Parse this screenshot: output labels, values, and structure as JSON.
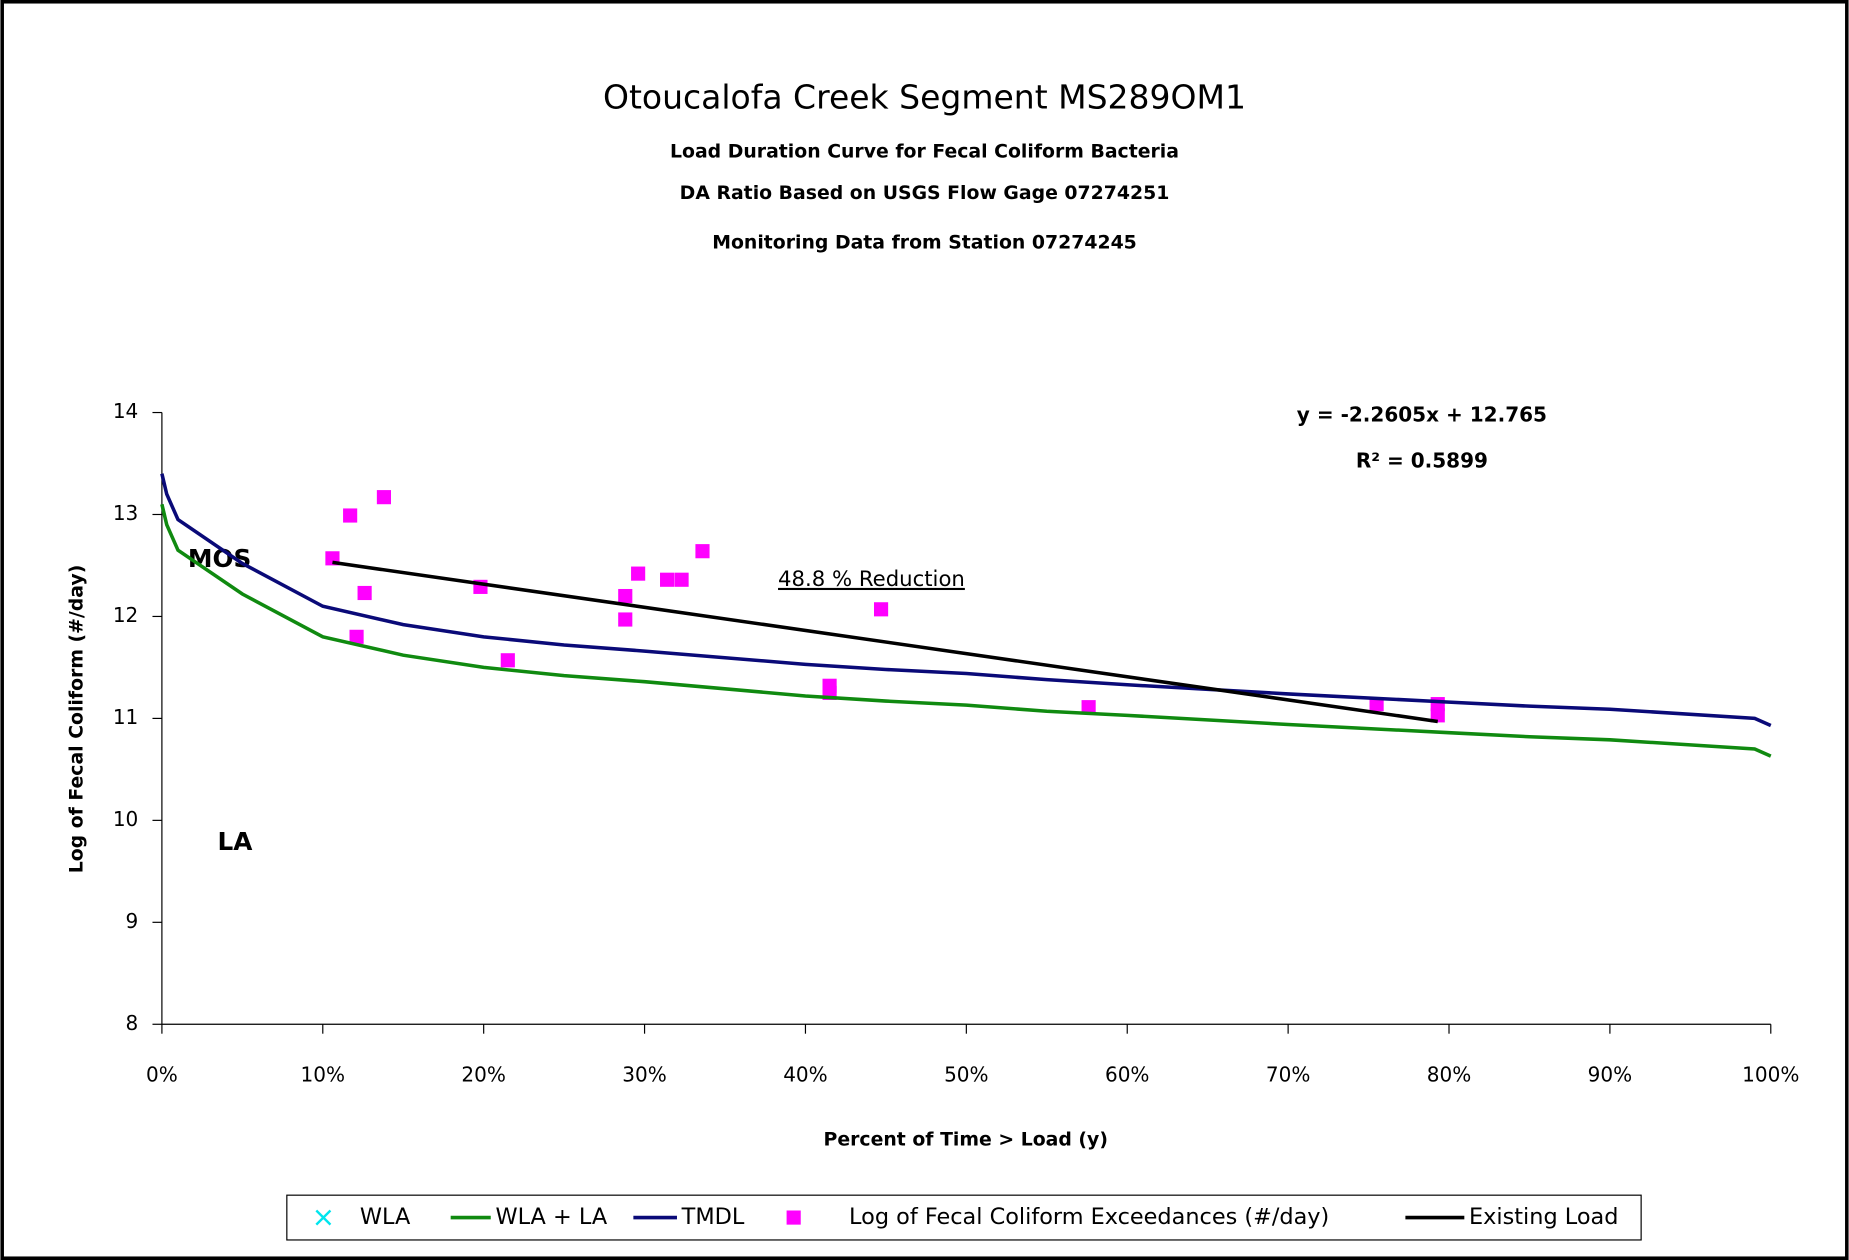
{
  "chart_data": {
    "type": "line",
    "title": "Otoucalofa Creek Segment MS289OM1",
    "subtitles": [
      "Load Duration Curve for Fecal Coliform Bacteria",
      "DA Ratio Based on USGS Flow Gage 07274251",
      "Monitoring Data from Station 07274245"
    ],
    "xlabel": "Percent of Time > Load (y)",
    "ylabel": "Log of Fecal Coliform (#/day)",
    "xlim": [
      0,
      100
    ],
    "ylim": [
      8,
      14
    ],
    "xticks": [
      {
        "value": 0,
        "label": "0%"
      },
      {
        "value": 10,
        "label": "10%"
      },
      {
        "value": 20,
        "label": "20%"
      },
      {
        "value": 30,
        "label": "30%"
      },
      {
        "value": 40,
        "label": "40%"
      },
      {
        "value": 50,
        "label": "50%"
      },
      {
        "value": 60,
        "label": "60%"
      },
      {
        "value": 70,
        "label": "70%"
      },
      {
        "value": 80,
        "label": "80%"
      },
      {
        "value": 90,
        "label": "90%"
      },
      {
        "value": 100,
        "label": "100%"
      }
    ],
    "yticks": [
      8,
      9,
      10,
      11,
      12,
      13,
      14
    ],
    "legend": "bottom",
    "series": [
      {
        "name": "WLA",
        "kind": "scatter",
        "marker": "x",
        "color": "#00e5ee",
        "x": [],
        "values": []
      },
      {
        "name": "WLA + LA",
        "kind": "line",
        "color": "#108a10",
        "x": [
          0,
          0.3,
          1,
          5,
          10,
          15,
          20,
          25,
          30,
          40,
          45,
          50,
          55,
          60,
          70,
          80,
          85,
          90,
          99,
          100
        ],
        "values": [
          13.1,
          12.9,
          12.65,
          12.22,
          11.8,
          11.62,
          11.5,
          11.42,
          11.36,
          11.22,
          11.17,
          11.13,
          11.07,
          11.03,
          10.94,
          10.86,
          10.82,
          10.79,
          10.7,
          10.63
        ]
      },
      {
        "name": "TMDL",
        "kind": "line",
        "color": "#0a0a78",
        "x": [
          0,
          0.3,
          1,
          5,
          10,
          15,
          20,
          25,
          30,
          40,
          45,
          50,
          55,
          60,
          70,
          80,
          85,
          90,
          99,
          100
        ],
        "values": [
          13.4,
          13.2,
          12.95,
          12.52,
          12.1,
          11.92,
          11.8,
          11.72,
          11.66,
          11.53,
          11.48,
          11.44,
          11.38,
          11.33,
          11.24,
          11.16,
          11.12,
          11.09,
          11.0,
          10.93
        ]
      },
      {
        "name": "Log of Fecal Coliform Exceedances (#/day)",
        "kind": "scatter",
        "marker": "square",
        "color": "#ff00ff",
        "x": [
          10.6,
          11.7,
          13.8,
          12.6,
          12.1,
          19.8,
          21.5,
          28.8,
          28.8,
          29.6,
          31.4,
          32.3,
          33.6,
          41.5,
          41.5,
          44.7,
          57.6,
          75.5,
          79.3,
          79.3
        ],
        "values": [
          12.57,
          12.99,
          13.17,
          12.23,
          11.8,
          12.29,
          11.57,
          12.2,
          11.97,
          12.42,
          12.36,
          12.36,
          12.64,
          11.32,
          11.25,
          12.07,
          11.11,
          11.14,
          11.14,
          11.03
        ]
      },
      {
        "name": "Existing Load",
        "kind": "line",
        "color": "#000000",
        "x": [
          10.6,
          79.3
        ],
        "values": [
          12.53,
          10.97
        ]
      }
    ],
    "annotations": {
      "equation": "y = -2.2605x + 12.765",
      "r_squared": "R² = 0.5899",
      "reduction": "48.8 % Reduction",
      "mos": "MOS",
      "la": "LA"
    }
  }
}
